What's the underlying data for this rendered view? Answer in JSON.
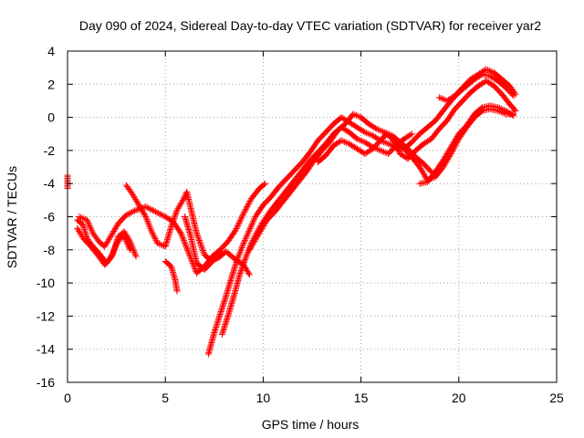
{
  "chart_data": {
    "type": "scatter",
    "title": "Day 090 of 2024, Sidereal Day-to-day VTEC variation (SDTVAR) for receiver yar2",
    "xlabel": "GPS time / hours",
    "ylabel": "SDTVAR / TECUs",
    "xlim": [
      0,
      25
    ],
    "ylim": [
      -16,
      4
    ],
    "x_ticks": [
      "0",
      "5",
      "10",
      "15",
      "20",
      "25"
    ],
    "y_ticks": [
      "-16",
      "-14",
      "-12",
      "-10",
      "-8",
      "-6",
      "-4",
      "-2",
      "0",
      "2",
      "4"
    ],
    "grid": true,
    "marker": "+",
    "color": "#ff0000",
    "series": [
      {
        "points": [
          [
            0.0,
            -3.5
          ],
          [
            0.0,
            -4.3
          ]
        ]
      },
      {
        "points": [
          [
            0.5,
            -6.2
          ],
          [
            0.8,
            -6.5
          ],
          [
            1.0,
            -7.3
          ],
          [
            1.3,
            -7.8
          ],
          [
            1.6,
            -8.2
          ],
          [
            2.0,
            -8.8
          ],
          [
            2.3,
            -8.3
          ],
          [
            2.6,
            -7.2
          ],
          [
            2.9,
            -6.9
          ],
          [
            3.2,
            -7.5
          ],
          [
            3.5,
            -8.4
          ]
        ]
      },
      {
        "points": [
          [
            0.5,
            -6.7
          ],
          [
            0.8,
            -7.3
          ],
          [
            1.2,
            -7.8
          ],
          [
            1.6,
            -8.4
          ],
          [
            1.9,
            -8.9
          ],
          [
            2.2,
            -8.5
          ],
          [
            2.6,
            -7.4
          ],
          [
            2.9,
            -7.2
          ],
          [
            3.2,
            -8.0
          ]
        ]
      },
      {
        "points": [
          [
            0.6,
            -6.0
          ],
          [
            1.0,
            -6.2
          ],
          [
            1.3,
            -7.0
          ],
          [
            1.6,
            -7.5
          ],
          [
            1.9,
            -7.8
          ],
          [
            2.2,
            -7.2
          ],
          [
            2.6,
            -6.4
          ],
          [
            3.0,
            -5.9
          ],
          [
            3.5,
            -5.6
          ],
          [
            4.0,
            -5.4
          ],
          [
            4.5,
            -5.7
          ],
          [
            5.0,
            -6.0
          ],
          [
            5.4,
            -6.3
          ],
          [
            5.8,
            -7.0
          ],
          [
            6.2,
            -8.2
          ],
          [
            6.6,
            -9.4
          ],
          [
            7.0,
            -9.0
          ],
          [
            7.4,
            -8.4
          ],
          [
            7.8,
            -8.0
          ],
          [
            8.2,
            -7.5
          ],
          [
            8.6,
            -6.8
          ],
          [
            9.0,
            -5.8
          ],
          [
            9.4,
            -4.9
          ],
          [
            9.8,
            -4.3
          ],
          [
            10.1,
            -4.0
          ]
        ]
      },
      {
        "points": [
          [
            3.0,
            -4.1
          ],
          [
            3.3,
            -4.6
          ],
          [
            3.6,
            -5.2
          ],
          [
            4.0,
            -6.0
          ],
          [
            4.3,
            -6.9
          ],
          [
            4.6,
            -7.6
          ],
          [
            5.0,
            -7.8
          ],
          [
            5.3,
            -6.6
          ],
          [
            5.6,
            -5.6
          ],
          [
            5.9,
            -5.0
          ],
          [
            6.1,
            -4.5
          ],
          [
            6.3,
            -5.5
          ],
          [
            6.6,
            -7.0
          ],
          [
            7.0,
            -8.3
          ],
          [
            7.3,
            -8.6
          ],
          [
            7.7,
            -8.5
          ],
          [
            8.1,
            -8.1
          ],
          [
            8.6,
            -8.6
          ],
          [
            9.0,
            -8.9
          ],
          [
            9.3,
            -9.5
          ]
        ]
      },
      {
        "points": [
          [
            5.0,
            -8.7
          ],
          [
            5.3,
            -9.0
          ],
          [
            5.5,
            -9.8
          ],
          [
            5.6,
            -10.5
          ]
        ]
      },
      {
        "points": [
          [
            6.0,
            -6.0
          ],
          [
            6.3,
            -7.2
          ],
          [
            6.6,
            -8.8
          ],
          [
            7.0,
            -9.2
          ],
          [
            7.4,
            -8.7
          ],
          [
            7.9,
            -8.2
          ]
        ]
      },
      {
        "points": [
          [
            7.2,
            -14.3
          ],
          [
            7.5,
            -13.0
          ],
          [
            7.8,
            -11.9
          ],
          [
            8.1,
            -10.8
          ],
          [
            8.4,
            -9.6
          ],
          [
            8.7,
            -8.5
          ],
          [
            9.0,
            -7.6
          ],
          [
            9.3,
            -6.8
          ],
          [
            9.6,
            -6.0
          ],
          [
            10.0,
            -5.3
          ],
          [
            10.4,
            -4.8
          ],
          [
            10.8,
            -4.2
          ],
          [
            11.2,
            -3.7
          ],
          [
            11.6,
            -3.2
          ],
          [
            12.0,
            -2.7
          ],
          [
            12.4,
            -2.1
          ],
          [
            12.8,
            -1.4
          ],
          [
            13.2,
            -0.9
          ],
          [
            13.6,
            -0.4
          ],
          [
            14.0,
            0.0
          ],
          [
            14.4,
            -0.3
          ],
          [
            14.8,
            -0.6
          ],
          [
            15.2,
            -0.9
          ],
          [
            15.6,
            -1.1
          ],
          [
            16.0,
            -1.4
          ],
          [
            16.4,
            -1.6
          ],
          [
            16.8,
            -1.8
          ],
          [
            17.2,
            -1.9
          ],
          [
            17.6,
            -1.5
          ],
          [
            18.0,
            -1.0
          ],
          [
            18.4,
            -0.6
          ],
          [
            18.8,
            -0.2
          ],
          [
            19.2,
            0.4
          ],
          [
            19.6,
            1.0
          ],
          [
            20.0,
            1.5
          ],
          [
            20.4,
            1.9
          ],
          [
            20.8,
            2.3
          ],
          [
            21.2,
            2.6
          ],
          [
            21.6,
            2.5
          ],
          [
            22.0,
            2.2
          ],
          [
            22.4,
            1.8
          ],
          [
            22.8,
            1.3
          ]
        ]
      },
      {
        "points": [
          [
            7.9,
            -13.1
          ],
          [
            8.2,
            -12.0
          ],
          [
            8.5,
            -10.8
          ],
          [
            8.8,
            -9.5
          ],
          [
            9.1,
            -8.5
          ],
          [
            9.4,
            -7.6
          ],
          [
            9.7,
            -6.9
          ],
          [
            10.0,
            -6.3
          ],
          [
            10.4,
            -5.6
          ],
          [
            10.8,
            -5.0
          ],
          [
            11.2,
            -4.4
          ],
          [
            11.6,
            -3.8
          ],
          [
            12.0,
            -3.2
          ],
          [
            12.4,
            -2.6
          ],
          [
            12.8,
            -2.1
          ],
          [
            13.2,
            -1.6
          ],
          [
            13.6,
            -1.0
          ],
          [
            14.0,
            -0.6
          ],
          [
            14.4,
            -0.9
          ],
          [
            14.8,
            -1.3
          ],
          [
            15.2,
            -1.5
          ],
          [
            15.6,
            -1.8
          ],
          [
            16.0,
            -2.0
          ],
          [
            16.4,
            -2.2
          ],
          [
            16.8,
            -1.7
          ],
          [
            17.2,
            -1.3
          ],
          [
            17.6,
            -1.0
          ]
        ]
      },
      {
        "points": [
          [
            9.3,
            -8.0
          ],
          [
            9.6,
            -7.4
          ],
          [
            9.9,
            -6.8
          ],
          [
            10.2,
            -6.2
          ],
          [
            10.6,
            -5.7
          ],
          [
            11.0,
            -5.1
          ],
          [
            11.4,
            -4.5
          ],
          [
            11.8,
            -3.9
          ],
          [
            12.2,
            -3.3
          ],
          [
            12.6,
            -2.6
          ],
          [
            13.0,
            -2.0
          ],
          [
            13.4,
            -1.5
          ],
          [
            13.8,
            -0.8
          ],
          [
            14.2,
            -0.4
          ],
          [
            14.6,
            0.2
          ],
          [
            15.0,
            0.0
          ],
          [
            15.4,
            -0.4
          ],
          [
            15.8,
            -0.7
          ],
          [
            16.2,
            -0.9
          ],
          [
            16.6,
            -1.1
          ],
          [
            17.0,
            -1.5
          ],
          [
            17.4,
            -1.9
          ],
          [
            17.8,
            -2.4
          ],
          [
            18.2,
            -2.8
          ],
          [
            18.6,
            -3.3
          ],
          [
            18.8,
            -3.4
          ]
        ]
      },
      {
        "points": [
          [
            12.8,
            -2.7
          ],
          [
            13.2,
            -2.3
          ],
          [
            13.6,
            -1.7
          ],
          [
            14.0,
            -1.4
          ],
          [
            14.4,
            -1.6
          ],
          [
            14.8,
            -1.9
          ],
          [
            15.2,
            -2.2
          ],
          [
            15.6,
            -1.9
          ],
          [
            16.0,
            -1.4
          ],
          [
            16.3,
            -1.0
          ],
          [
            16.6,
            -1.3
          ],
          [
            17.0,
            -2.2
          ],
          [
            17.4,
            -2.5
          ],
          [
            17.8,
            -2.0
          ],
          [
            18.2,
            -1.6
          ],
          [
            18.6,
            -1.3
          ],
          [
            19.0,
            -0.7
          ],
          [
            19.4,
            -0.2
          ],
          [
            19.8,
            0.5
          ],
          [
            20.2,
            1.0
          ],
          [
            20.6,
            1.5
          ],
          [
            21.0,
            1.9
          ],
          [
            21.4,
            2.2
          ],
          [
            21.8,
            1.9
          ],
          [
            22.2,
            1.4
          ],
          [
            22.6,
            0.8
          ],
          [
            22.9,
            0.4
          ]
        ]
      },
      {
        "points": [
          [
            16.8,
            -1.5
          ],
          [
            17.2,
            -1.9
          ],
          [
            17.6,
            -2.4
          ],
          [
            18.0,
            -3.0
          ],
          [
            18.4,
            -3.8
          ],
          [
            18.8,
            -3.6
          ],
          [
            19.2,
            -3.0
          ],
          [
            19.6,
            -2.2
          ],
          [
            20.0,
            -1.3
          ],
          [
            20.4,
            -0.6
          ],
          [
            20.8,
            0.0
          ],
          [
            21.2,
            0.4
          ],
          [
            21.6,
            0.5
          ],
          [
            22.0,
            0.4
          ],
          [
            22.4,
            0.2
          ],
          [
            22.8,
            0.2
          ]
        ]
      },
      {
        "points": [
          [
            18.0,
            -4.0
          ],
          [
            18.4,
            -3.9
          ],
          [
            18.8,
            -3.3
          ],
          [
            19.2,
            -2.6
          ],
          [
            19.6,
            -1.8
          ],
          [
            20.0,
            -1.0
          ],
          [
            20.4,
            -0.5
          ],
          [
            20.8,
            0.2
          ],
          [
            21.2,
            0.6
          ],
          [
            21.6,
            0.7
          ],
          [
            22.0,
            0.6
          ],
          [
            22.4,
            0.4
          ],
          [
            22.8,
            0.1
          ]
        ]
      },
      {
        "points": [
          [
            19.0,
            1.2
          ],
          [
            19.4,
            1.0
          ],
          [
            19.8,
            1.3
          ],
          [
            20.2,
            1.8
          ],
          [
            20.6,
            2.3
          ],
          [
            21.0,
            2.6
          ],
          [
            21.4,
            2.9
          ],
          [
            21.8,
            2.7
          ],
          [
            22.2,
            2.3
          ],
          [
            22.6,
            1.9
          ],
          [
            22.9,
            1.4
          ]
        ]
      }
    ]
  }
}
